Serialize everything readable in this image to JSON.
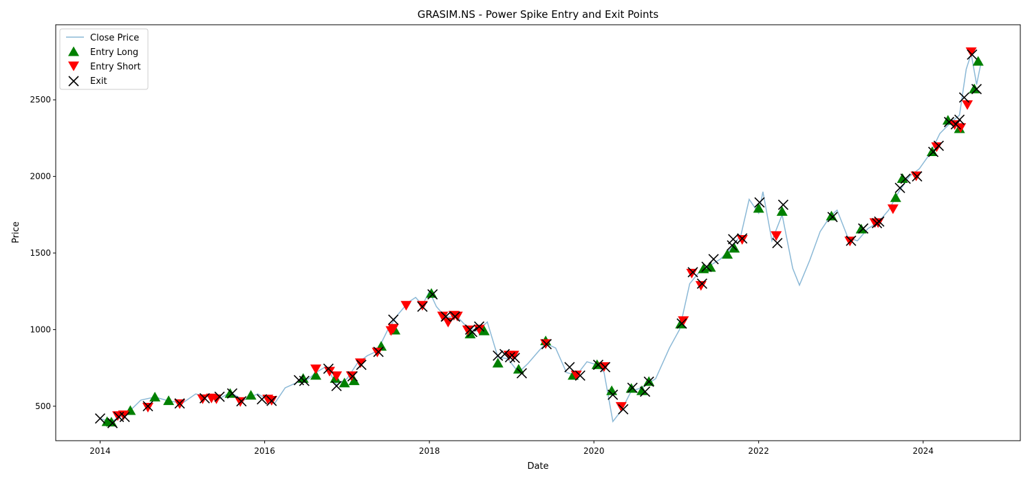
{
  "chart_data": {
    "type": "line",
    "title": "GRASIM.NS - Power Spike Entry and Exit Points",
    "xlabel": "Date",
    "ylabel": "Price",
    "xlim": [
      "2013-06-18",
      "2025-03-07"
    ],
    "ylim": [
      275,
      2990
    ],
    "x_ticks": [
      "2014",
      "2016",
      "2018",
      "2020",
      "2022",
      "2024"
    ],
    "y_ticks": [
      500,
      1000,
      1500,
      2000,
      2500
    ],
    "grid": false,
    "legend_position": "upper-left",
    "legend": {
      "close_price": "Close Price",
      "entry_long": "Entry Long",
      "entry_short": "Entry Short",
      "exit": "Exit"
    },
    "colors": {
      "close_price": "#8ab8d6",
      "entry_long": "#008000",
      "entry_short": "#ff0000",
      "exit": "#000000"
    },
    "series": [
      {
        "name": "Close Price",
        "points": [
          [
            "2014-01-01",
            420
          ],
          [
            "2014-02-15",
            398
          ],
          [
            "2014-04-01",
            430
          ],
          [
            "2014-05-20",
            480
          ],
          [
            "2014-07-01",
            540
          ],
          [
            "2014-09-01",
            560
          ],
          [
            "2014-11-01",
            535
          ],
          [
            "2015-01-01",
            520
          ],
          [
            "2015-03-01",
            580
          ],
          [
            "2015-05-01",
            560
          ],
          [
            "2015-06-15",
            550
          ],
          [
            "2015-08-01",
            590
          ],
          [
            "2015-10-01",
            540
          ],
          [
            "2015-12-01",
            580
          ],
          [
            "2016-01-15",
            545
          ],
          [
            "2016-02-15",
            520
          ],
          [
            "2016-04-01",
            620
          ],
          [
            "2016-06-01",
            660
          ],
          [
            "2016-07-15",
            680
          ],
          [
            "2016-08-15",
            720
          ],
          [
            "2016-10-01",
            760
          ],
          [
            "2016-11-15",
            640
          ],
          [
            "2017-01-01",
            680
          ],
          [
            "2017-02-15",
            780
          ],
          [
            "2017-04-01",
            830
          ],
          [
            "2017-05-15",
            860
          ],
          [
            "2017-07-01",
            1000
          ],
          [
            "2017-08-15",
            1100
          ],
          [
            "2017-10-01",
            1180
          ],
          [
            "2017-11-01",
            1210
          ],
          [
            "2017-12-01",
            1160
          ],
          [
            "2018-01-01",
            1250
          ],
          [
            "2018-02-01",
            1150
          ],
          [
            "2018-03-15",
            1080
          ],
          [
            "2018-05-01",
            1090
          ],
          [
            "2018-06-15",
            1020
          ],
          [
            "2018-08-01",
            990
          ],
          [
            "2018-09-15",
            1050
          ],
          [
            "2018-11-01",
            820
          ],
          [
            "2018-12-15",
            810
          ],
          [
            "2019-02-01",
            720
          ],
          [
            "2019-03-15",
            780
          ],
          [
            "2019-05-01",
            860
          ],
          [
            "2019-06-01",
            910
          ],
          [
            "2019-07-15",
            880
          ],
          [
            "2019-09-01",
            720
          ],
          [
            "2019-10-15",
            700
          ],
          [
            "2019-12-01",
            790
          ],
          [
            "2020-01-15",
            770
          ],
          [
            "2020-02-15",
            720
          ],
          [
            "2020-03-25",
            400
          ],
          [
            "2020-05-01",
            470
          ],
          [
            "2020-06-15",
            600
          ],
          [
            "2020-08-01",
            620
          ],
          [
            "2020-10-01",
            680
          ],
          [
            "2020-12-01",
            880
          ],
          [
            "2021-01-15",
            1000
          ],
          [
            "2021-03-01",
            1300
          ],
          [
            "2021-04-15",
            1380
          ],
          [
            "2021-06-01",
            1420
          ],
          [
            "2021-07-15",
            1460
          ],
          [
            "2021-09-01",
            1530
          ],
          [
            "2021-10-15",
            1620
          ],
          [
            "2021-11-20",
            1850
          ],
          [
            "2022-01-01",
            1760
          ],
          [
            "2022-01-20",
            1900
          ],
          [
            "2022-03-01",
            1580
          ],
          [
            "2022-04-15",
            1750
          ],
          [
            "2022-06-01",
            1400
          ],
          [
            "2022-07-01",
            1290
          ],
          [
            "2022-08-15",
            1450
          ],
          [
            "2022-10-01",
            1640
          ],
          [
            "2022-11-15",
            1740
          ],
          [
            "2022-12-15",
            1780
          ],
          [
            "2023-02-01",
            1600
          ],
          [
            "2023-03-15",
            1580
          ],
          [
            "2023-05-01",
            1660
          ],
          [
            "2023-06-15",
            1700
          ],
          [
            "2023-08-01",
            1780
          ],
          [
            "2023-09-15",
            1900
          ],
          [
            "2023-11-01",
            2000
          ],
          [
            "2023-12-15",
            2050
          ],
          [
            "2024-02-01",
            2150
          ],
          [
            "2024-03-15",
            2280
          ],
          [
            "2024-05-01",
            2350
          ],
          [
            "2024-06-10",
            2400
          ],
          [
            "2024-07-10",
            2700
          ],
          [
            "2024-08-01",
            2800
          ],
          [
            "2024-08-25",
            2600
          ],
          [
            "2024-09-15",
            2750
          ]
        ]
      }
    ],
    "entry_long": [
      [
        "2014-02-01",
        398
      ],
      [
        "2014-02-20",
        395
      ],
      [
        "2014-05-15",
        470
      ],
      [
        "2014-09-01",
        558
      ],
      [
        "2014-11-01",
        535
      ],
      [
        "2015-08-01",
        582
      ],
      [
        "2015-11-01",
        570
      ],
      [
        "2016-06-20",
        680
      ],
      [
        "2016-08-15",
        700
      ],
      [
        "2016-11-10",
        680
      ],
      [
        "2016-12-20",
        650
      ],
      [
        "2017-02-01",
        665
      ],
      [
        "2017-06-01",
        890
      ],
      [
        "2017-08-01",
        995
      ],
      [
        "2018-01-10",
        1235
      ],
      [
        "2018-07-01",
        970
      ],
      [
        "2018-09-01",
        990
      ],
      [
        "2018-11-01",
        780
      ],
      [
        "2019-02-01",
        740
      ],
      [
        "2019-06-01",
        925
      ],
      [
        "2019-10-01",
        700
      ],
      [
        "2020-01-15",
        770
      ],
      [
        "2020-03-20",
        600
      ],
      [
        "2020-06-15",
        615
      ],
      [
        "2020-08-01",
        600
      ],
      [
        "2020-09-01",
        660
      ],
      [
        "2021-01-20",
        1035
      ],
      [
        "2021-05-01",
        1395
      ],
      [
        "2021-06-01",
        1405
      ],
      [
        "2021-08-15",
        1490
      ],
      [
        "2021-09-15",
        1530
      ],
      [
        "2022-01-01",
        1790
      ],
      [
        "2022-04-15",
        1770
      ],
      [
        "2022-11-20",
        1740
      ],
      [
        "2023-04-01",
        1655
      ],
      [
        "2023-09-01",
        1860
      ],
      [
        "2023-10-01",
        1985
      ],
      [
        "2024-02-10",
        2160
      ],
      [
        "2024-04-20",
        2365
      ],
      [
        "2024-06-10",
        2310
      ],
      [
        "2024-08-15",
        2570
      ],
      [
        "2024-09-01",
        2750
      ]
    ],
    "entry_short": [
      [
        "2014-03-20",
        440
      ],
      [
        "2014-04-15",
        445
      ],
      [
        "2014-08-01",
        495
      ],
      [
        "2014-12-20",
        518
      ],
      [
        "2015-04-01",
        550
      ],
      [
        "2015-05-10",
        555
      ],
      [
        "2015-06-01",
        550
      ],
      [
        "2015-09-15",
        532
      ],
      [
        "2016-01-15",
        548
      ],
      [
        "2016-02-01",
        540
      ],
      [
        "2016-08-15",
        745
      ],
      [
        "2016-10-15",
        730
      ],
      [
        "2016-11-15",
        700
      ],
      [
        "2017-01-20",
        700
      ],
      [
        "2017-03-01",
        785
      ],
      [
        "2017-05-15",
        855
      ],
      [
        "2017-07-15",
        995
      ],
      [
        "2017-07-25",
        1010
      ],
      [
        "2017-09-20",
        1160
      ],
      [
        "2017-12-01",
        1160
      ],
      [
        "2018-03-01",
        1090
      ],
      [
        "2018-03-25",
        1050
      ],
      [
        "2018-04-20",
        1095
      ],
      [
        "2018-05-05",
        1090
      ],
      [
        "2018-06-20",
        1000
      ],
      [
        "2018-08-10",
        1005
      ],
      [
        "2018-12-20",
        835
      ],
      [
        "2019-01-10",
        835
      ],
      [
        "2019-06-01",
        910
      ],
      [
        "2019-10-15",
        705
      ],
      [
        "2020-02-15",
        760
      ],
      [
        "2020-05-01",
        500
      ],
      [
        "2021-02-01",
        1060
      ],
      [
        "2021-03-10",
        1370
      ],
      [
        "2021-04-20",
        1290
      ],
      [
        "2021-10-20",
        1590
      ],
      [
        "2022-03-20",
        1615
      ],
      [
        "2023-02-10",
        1580
      ],
      [
        "2023-06-01",
        1700
      ],
      [
        "2023-06-15",
        1700
      ],
      [
        "2023-08-20",
        1790
      ],
      [
        "2023-12-01",
        2005
      ],
      [
        "2024-03-01",
        2195
      ],
      [
        "2024-05-20",
        2340
      ],
      [
        "2024-06-15",
        2320
      ],
      [
        "2024-07-15",
        2470
      ],
      [
        "2024-08-01",
        2815
      ]
    ],
    "exit": [
      [
        "2014-01-01",
        420
      ],
      [
        "2014-02-25",
        390
      ],
      [
        "2014-03-25",
        430
      ],
      [
        "2014-04-20",
        430
      ],
      [
        "2014-08-01",
        500
      ],
      [
        "2014-12-20",
        518
      ],
      [
        "2015-04-10",
        552
      ],
      [
        "2015-06-15",
        562
      ],
      [
        "2015-08-10",
        583
      ],
      [
        "2015-09-20",
        532
      ],
      [
        "2015-12-20",
        545
      ],
      [
        "2016-02-01",
        535
      ],
      [
        "2016-06-01",
        670
      ],
      [
        "2016-06-25",
        665
      ],
      [
        "2016-10-10",
        745
      ],
      [
        "2016-11-15",
        632
      ],
      [
        "2017-01-25",
        695
      ],
      [
        "2017-03-05",
        770
      ],
      [
        "2017-05-20",
        855
      ],
      [
        "2017-07-25",
        1065
      ],
      [
        "2017-12-01",
        1150
      ],
      [
        "2018-01-15",
        1230
      ],
      [
        "2018-03-15",
        1085
      ],
      [
        "2018-04-25",
        1085
      ],
      [
        "2018-07-01",
        1000
      ],
      [
        "2018-07-10",
        985
      ],
      [
        "2018-08-10",
        1020
      ],
      [
        "2018-11-01",
        830
      ],
      [
        "2018-12-01",
        840
      ],
      [
        "2018-12-25",
        820
      ],
      [
        "2019-01-15",
        815
      ],
      [
        "2019-02-15",
        715
      ],
      [
        "2019-06-05",
        905
      ],
      [
        "2019-09-15",
        755
      ],
      [
        "2019-11-01",
        700
      ],
      [
        "2020-01-20",
        770
      ],
      [
        "2020-02-20",
        755
      ],
      [
        "2020-03-25",
        575
      ],
      [
        "2020-05-10",
        480
      ],
      [
        "2020-06-20",
        620
      ],
      [
        "2020-08-15",
        595
      ],
      [
        "2020-09-01",
        660
      ],
      [
        "2021-01-25",
        1040
      ],
      [
        "2021-03-15",
        1375
      ],
      [
        "2021-04-25",
        1300
      ],
      [
        "2021-05-15",
        1410
      ],
      [
        "2021-06-15",
        1460
      ],
      [
        "2021-09-05",
        1550
      ],
      [
        "2021-09-10",
        1590
      ],
      [
        "2021-10-20",
        1595
      ],
      [
        "2022-01-05",
        1830
      ],
      [
        "2022-03-25",
        1565
      ],
      [
        "2022-04-20",
        1815
      ],
      [
        "2022-11-25",
        1735
      ],
      [
        "2023-02-15",
        1580
      ],
      [
        "2023-04-10",
        1660
      ],
      [
        "2023-06-10",
        1695
      ],
      [
        "2023-06-20",
        1705
      ],
      [
        "2023-09-20",
        1925
      ],
      [
        "2023-10-15",
        1985
      ],
      [
        "2023-12-05",
        2000
      ],
      [
        "2024-02-15",
        2160
      ],
      [
        "2024-03-10",
        2200
      ],
      [
        "2024-04-25",
        2355
      ],
      [
        "2024-05-25",
        2340
      ],
      [
        "2024-06-10",
        2370
      ],
      [
        "2024-07-01",
        2515
      ],
      [
        "2024-08-05",
        2795
      ],
      [
        "2024-08-25",
        2570
      ]
    ]
  }
}
